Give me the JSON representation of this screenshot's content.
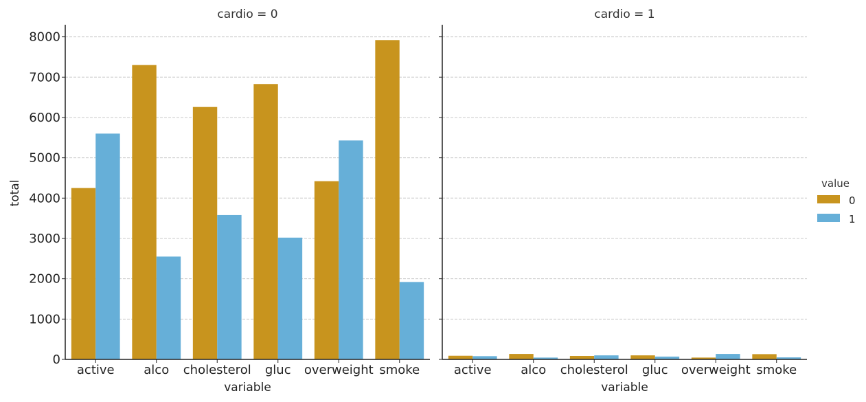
{
  "chart_data": {
    "type": "bar",
    "ylabel": "total",
    "xlabel": "variable",
    "ylim": [
      0,
      8300
    ],
    "yticks": [
      0,
      1000,
      2000,
      3000,
      4000,
      5000,
      6000,
      7000,
      8000
    ],
    "grid": "horizontal dashed",
    "categories": [
      "active",
      "alco",
      "cholesterol",
      "gluc",
      "overweight",
      "smoke"
    ],
    "legend": {
      "title": "value",
      "placement": "right",
      "entries": [
        {
          "label": "0",
          "color": "#C8941E"
        },
        {
          "label": "1",
          "color": "#66AFD8"
        }
      ]
    },
    "facets": [
      {
        "title": "cardio = 0",
        "series": [
          {
            "name": "0",
            "color": "#C8941E",
            "values": [
              4250,
              7300,
              6260,
              6830,
              4420,
              7920
            ]
          },
          {
            "name": "1",
            "color": "#66AFD8",
            "values": [
              5600,
              2550,
              3580,
              3020,
              5430,
              1920
            ]
          }
        ]
      },
      {
        "title": "cardio = 1",
        "series": [
          {
            "name": "0",
            "color": "#C8941E",
            "values": [
              90,
              135,
              85,
              100,
              45,
              130
            ]
          },
          {
            "name": "1",
            "color": "#66AFD8",
            "values": [
              80,
              45,
              100,
              70,
              135,
              50
            ]
          }
        ]
      }
    ]
  }
}
